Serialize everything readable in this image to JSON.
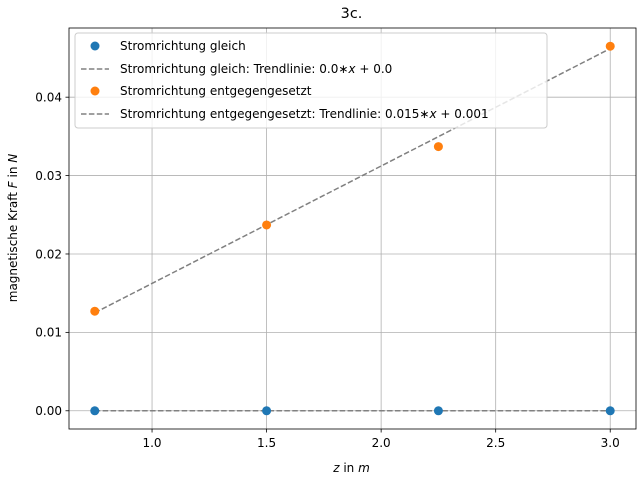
{
  "chart_data": {
    "type": "scatter",
    "title": "3c.",
    "xlabel": {
      "var": "z",
      "rest": " in ",
      "unit": "m"
    },
    "ylabel": {
      "pre": "magnetische Kraft ",
      "var": "F",
      "rest": " in ",
      "unit": "N"
    },
    "xlim": [
      0.6375,
      3.1125
    ],
    "ylim": [
      -0.002325,
      0.048825
    ],
    "xticks": [
      1.0,
      1.5,
      2.0,
      2.5,
      3.0
    ],
    "xtick_labels": [
      "1.0",
      "1.5",
      "2.0",
      "2.5",
      "3.0"
    ],
    "yticks": [
      0.0,
      0.01,
      0.02,
      0.03,
      0.04
    ],
    "ytick_labels": [
      "0.00",
      "0.01",
      "0.02",
      "0.03",
      "0.04"
    ],
    "grid": true,
    "legend_placement": "top-left",
    "series": [
      {
        "name": "Stromrichtung gleich",
        "color": "#1f77b4",
        "x": [
          0.75,
          1.5,
          2.25,
          3.0
        ],
        "y": [
          0.0,
          0.0,
          0.0,
          0.0
        ]
      },
      {
        "name": "Stromrichtung entgegengesetzt",
        "color": "#ff7f0e",
        "x": [
          0.75,
          1.5,
          2.25,
          3.0
        ],
        "y": [
          0.0127,
          0.0237,
          0.0337,
          0.0465
        ]
      }
    ],
    "trendlines": [
      {
        "name_prefix": "Stromrichtung gleich: Trendlinie: ",
        "slope_text": "0.0",
        "intercept_text": "0.0",
        "color": "#808080",
        "x": [
          0.75,
          3.0
        ],
        "y": [
          0.0,
          0.0
        ]
      },
      {
        "name_prefix": "Stromrichtung entgegengesetzt: Trendlinie: ",
        "slope_text": "0.015",
        "intercept_text": "0.001",
        "color": "#808080",
        "x": [
          0.75,
          3.0
        ],
        "y": [
          0.0125,
          0.0462
        ]
      }
    ]
  }
}
